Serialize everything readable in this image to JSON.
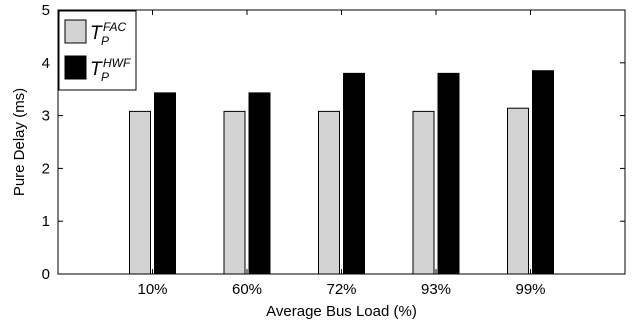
{
  "chart_data": {
    "type": "bar",
    "categories": [
      "10%",
      "60%",
      "72%",
      "93%",
      "99%"
    ],
    "series": [
      {
        "name": "T_P^FAC",
        "label_main": "T",
        "label_sub": "P",
        "label_sup": "FAC",
        "color": "#d3d3d3",
        "values": [
          3.08,
          3.08,
          3.08,
          3.08,
          3.14
        ]
      },
      {
        "name": "T_P^HWF",
        "label_main": "T",
        "label_sub": "P",
        "label_sup": "HWF",
        "color": "#000000",
        "values": [
          3.43,
          3.43,
          3.8,
          3.8,
          3.85
        ]
      }
    ],
    "xlabel": "Average Bus Load (%)",
    "ylabel": "Pure Delay (ms)",
    "ylim": [
      0,
      5
    ],
    "yticks": [
      "0",
      "1",
      "2",
      "3",
      "4",
      "5"
    ],
    "grid": false,
    "legend_position": "top-left"
  }
}
